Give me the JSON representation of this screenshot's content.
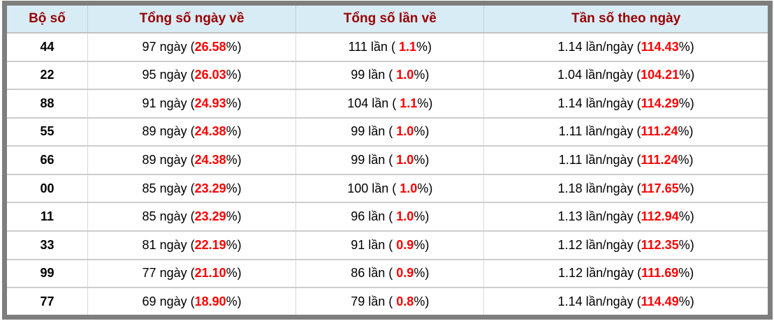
{
  "colors": {
    "frame_border": "#7e7e7e",
    "header_background": "#d8ecf6",
    "header_text": "#990000",
    "body_text": "#000000",
    "highlight_percent": "#ff0000",
    "row_separator": "#cdcdcd",
    "column_separator": "#d9d9d9"
  },
  "table": {
    "columns": [
      "Bộ số",
      "Tổng số ngày về",
      "Tổng số lần về",
      "Tần số theo ngày"
    ],
    "rows": [
      {
        "pair": "44",
        "days": [
          "97 ngày (",
          "26.58",
          "%)"
        ],
        "times": [
          "111 lần ( ",
          "1.1",
          "%)"
        ],
        "freq": [
          "1.14 lần/ngày (",
          "114.43",
          "%)"
        ]
      },
      {
        "pair": "22",
        "days": [
          "95 ngày (",
          "26.03",
          "%)"
        ],
        "times": [
          "99 lần ( ",
          "1.0",
          "%)"
        ],
        "freq": [
          "1.04 lần/ngày (",
          "104.21",
          "%)"
        ]
      },
      {
        "pair": "88",
        "days": [
          "91 ngày (",
          "24.93",
          "%)"
        ],
        "times": [
          "104 lần ( ",
          "1.1",
          "%)"
        ],
        "freq": [
          "1.14 lần/ngày (",
          "114.29",
          "%)"
        ]
      },
      {
        "pair": "55",
        "days": [
          "89 ngày (",
          "24.38",
          "%)"
        ],
        "times": [
          "99 lần ( ",
          "1.0",
          "%)"
        ],
        "freq": [
          "1.11 lần/ngày (",
          "111.24",
          "%)"
        ]
      },
      {
        "pair": "66",
        "days": [
          "89 ngày (",
          "24.38",
          "%)"
        ],
        "times": [
          "99 lần ( ",
          "1.0",
          "%)"
        ],
        "freq": [
          "1.11 lần/ngày (",
          "111.24",
          "%)"
        ]
      },
      {
        "pair": "00",
        "days": [
          "85 ngày (",
          "23.29",
          "%)"
        ],
        "times": [
          "100 lần ( ",
          "1.0",
          "%)"
        ],
        "freq": [
          "1.18 lần/ngày (",
          "117.65",
          "%)"
        ]
      },
      {
        "pair": "11",
        "days": [
          "85 ngày (",
          "23.29",
          "%)"
        ],
        "times": [
          "96 lần ( ",
          "1.0",
          "%)"
        ],
        "freq": [
          "1.13 lần/ngày (",
          "112.94",
          "%)"
        ]
      },
      {
        "pair": "33",
        "days": [
          "81 ngày (",
          "22.19",
          "%)"
        ],
        "times": [
          "91 lần ( ",
          "0.9",
          "%)"
        ],
        "freq": [
          "1.12 lần/ngày (",
          "112.35",
          "%)"
        ]
      },
      {
        "pair": "99",
        "days": [
          "77 ngày (",
          "21.10",
          "%)"
        ],
        "times": [
          "86 lần ( ",
          "0.9",
          "%)"
        ],
        "freq": [
          "1.12 lần/ngày (",
          "111.69",
          "%)"
        ]
      },
      {
        "pair": "77",
        "days": [
          "69 ngày (",
          "18.90",
          "%)"
        ],
        "times": [
          "79 lần ( ",
          "0.8",
          "%)"
        ],
        "freq": [
          "1.14 lần/ngày (",
          "114.49",
          "%)"
        ]
      }
    ]
  },
  "chart_data": {
    "type": "table",
    "columns": [
      "Bộ số",
      "Tổng số ngày về",
      "Tổng số lần về",
      "Tần số theo ngày"
    ],
    "rows": [
      [
        "44",
        "97 ngày (26.58%)",
        "111 lần ( 1.1%)",
        "1.14 lần/ngày (114.43%)"
      ],
      [
        "22",
        "95 ngày (26.03%)",
        "99 lần ( 1.0%)",
        "1.04 lần/ngày (104.21%)"
      ],
      [
        "88",
        "91 ngày (24.93%)",
        "104 lần ( 1.1%)",
        "1.14 lần/ngày (114.29%)"
      ],
      [
        "55",
        "89 ngày (24.38%)",
        "99 lần ( 1.0%)",
        "1.11 lần/ngày (111.24%)"
      ],
      [
        "66",
        "89 ngày (24.38%)",
        "99 lần ( 1.0%)",
        "1.11 lần/ngày (111.24%)"
      ],
      [
        "00",
        "85 ngày (23.29%)",
        "100 lần ( 1.0%)",
        "1.18 lần/ngày (117.65%)"
      ],
      [
        "11",
        "85 ngày (23.29%)",
        "96 lần ( 1.0%)",
        "1.13 lần/ngày (112.94%)"
      ],
      [
        "33",
        "81 ngày (22.19%)",
        "91 lần ( 0.9%)",
        "1.12 lần/ngày (112.35%)"
      ],
      [
        "99",
        "77 ngày (21.10%)",
        "86 lần ( 0.9%)",
        "1.12 lần/ngày (111.69%)"
      ],
      [
        "77",
        "69 ngày (18.90%)",
        "79 lần ( 0.8%)",
        "1.14 lần/ngày (114.49%)"
      ]
    ]
  }
}
